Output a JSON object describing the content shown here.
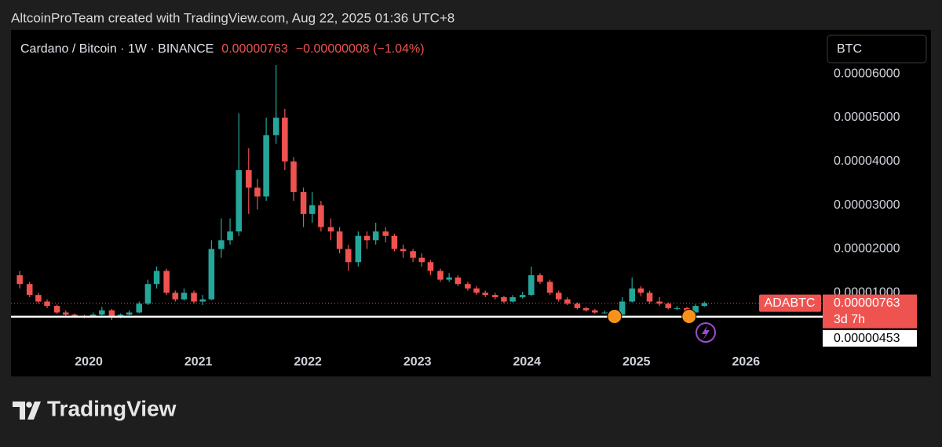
{
  "header": {
    "credit": "AltcoinProTeam created with TradingView.com, Aug 22, 2025 01:36 UTC+8"
  },
  "footer": {
    "brand": "TradingView"
  },
  "chart_data": {
    "type": "candlestick",
    "title": "Cardano / Bitcoin · 1W · BINANCE",
    "last_price": "0.00000763",
    "change": "−0.00000008 (−1.04%)",
    "currency": "BTC",
    "up_color": "#26a69a",
    "down_color": "#ef5350",
    "x": [
      2019.37,
      2019.46,
      2019.54,
      2019.62,
      2019.71,
      2019.79,
      2019.87,
      2019.96,
      2020.04,
      2020.12,
      2020.21,
      2020.29,
      2020.37,
      2020.46,
      2020.54,
      2020.62,
      2020.71,
      2020.79,
      2020.87,
      2020.96,
      2021.04,
      2021.12,
      2021.21,
      2021.29,
      2021.37,
      2021.46,
      2021.54,
      2021.62,
      2021.71,
      2021.79,
      2021.87,
      2021.96,
      2022.04,
      2022.12,
      2022.21,
      2022.29,
      2022.37,
      2022.46,
      2022.54,
      2022.62,
      2022.71,
      2022.79,
      2022.87,
      2022.96,
      2023.04,
      2023.12,
      2023.21,
      2023.29,
      2023.37,
      2023.46,
      2023.54,
      2023.62,
      2023.71,
      2023.79,
      2023.87,
      2023.96,
      2024.04,
      2024.12,
      2024.21,
      2024.29,
      2024.37,
      2024.46,
      2024.54,
      2024.62,
      2024.71,
      2024.79,
      2024.87,
      2024.96,
      2025.04,
      2025.12,
      2025.21,
      2025.29,
      2025.37,
      2025.46,
      2025.54,
      2025.62
    ],
    "open": [
      1.4e-05,
      1.2e-05,
      9.5e-06,
      8e-06,
      7e-06,
      5.5e-06,
      5e-06,
      4.6e-06,
      4.5e-06,
      5e-06,
      6e-06,
      4.5e-06,
      5e-06,
      5.5e-06,
      7.5e-06,
      1.2e-05,
      1.5e-05,
      1e-05,
      8.5e-06,
      1e-05,
      8e-06,
      8.5e-06,
      2e-05,
      2.2e-05,
      2.4e-05,
      3.8e-05,
      3.4e-05,
      3.2e-05,
      4.6e-05,
      5e-05,
      4e-05,
      3.3e-05,
      2.8e-05,
      3e-05,
      2.5e-05,
      2.4e-05,
      2e-05,
      1.7e-05,
      2.3e-05,
      2.2e-05,
      2.4e-05,
      2.3e-05,
      2e-05,
      1.95e-05,
      1.8e-05,
      1.7e-05,
      1.5e-05,
      1.3e-05,
      1.35e-05,
      1.2e-05,
      1.1e-05,
      1e-05,
      9.5e-06,
      9e-06,
      8e-06,
      9e-06,
      9.5e-06,
      1.4e-05,
      1.25e-05,
      1e-05,
      8.5e-06,
      7.5e-06,
      6.5e-06,
      6e-06,
      5.5e-06,
      5.5e-06,
      5e-06,
      8e-06,
      1.1e-05,
      1e-05,
      8e-06,
      7.5e-06,
      6.5e-06,
      6.5e-06,
      5.5e-06,
      7e-06
    ],
    "high": [
      1.5e-05,
      1.25e-05,
      1e-05,
      8.5e-06,
      7.3e-06,
      6e-06,
      5.3e-06,
      5e-06,
      5.5e-06,
      6.8e-06,
      6.3e-06,
      5.3e-06,
      6e-06,
      8e-06,
      1.3e-05,
      1.6e-05,
      1.55e-05,
      1.05e-05,
      1.1e-05,
      1.05e-05,
      9.5e-06,
      2.2e-05,
      2.7e-05,
      2.7e-05,
      5.1e-05,
      4.3e-05,
      3.6e-05,
      5e-05,
      6.2e-05,
      5.2e-05,
      4.1e-05,
      3.4e-05,
      3.3e-05,
      3.1e-05,
      2.7e-05,
      2.5e-05,
      2.1e-05,
      2.4e-05,
      2.4e-05,
      2.6e-05,
      2.5e-05,
      2.35e-05,
      2.1e-05,
      2e-05,
      1.9e-05,
      1.75e-05,
      1.55e-05,
      1.45e-05,
      1.4e-05,
      1.25e-05,
      1.15e-05,
      1.05e-05,
      1e-05,
      9.3e-06,
      9.5e-06,
      1.02e-05,
      1.6e-05,
      1.45e-05,
      1.3e-05,
      1.05e-05,
      9e-06,
      7.8e-06,
      6.8e-06,
      6.3e-06,
      5.9e-06,
      5.8e-06,
      9e-06,
      1.35e-05,
      1.15e-05,
      1.05e-05,
      9e-06,
      7.8e-06,
      7e-06,
      6.8e-06,
      7.4e-06,
      8e-06
    ],
    "low": [
      1.1e-05,
      9e-06,
      7.5e-06,
      6.5e-06,
      5.2e-06,
      4.7e-06,
      4.3e-06,
      4.2e-06,
      4.3e-06,
      4.8e-06,
      3.8e-06,
      4.2e-06,
      4.8e-06,
      5.3e-06,
      7.2e-06,
      1.1e-05,
      9.5e-06,
      8e-06,
      8.2e-06,
      7.5e-06,
      7.2e-06,
      8.3e-06,
      1.8e-05,
      2.1e-05,
      2.3e-05,
      2.8e-05,
      2.9e-05,
      3.1e-05,
      4.4e-05,
      3.8e-05,
      3.1e-05,
      2.5e-05,
      2.6e-05,
      2.4e-05,
      2.2e-05,
      1.9e-05,
      1.5e-05,
      1.6e-05,
      2e-05,
      2.1e-05,
      2.15e-05,
      1.95e-05,
      1.8e-05,
      1.7e-05,
      1.6e-05,
      1.4e-05,
      1.25e-05,
      1.25e-05,
      1.15e-05,
      1.05e-05,
      9.5e-06,
      9e-06,
      8.5e-06,
      7.6e-06,
      7.8e-06,
      8.7e-06,
      9.3e-06,
      1.2e-05,
      9.5e-06,
      8e-06,
      7.2e-06,
      6.2e-06,
      5.7e-06,
      5.2e-06,
      5.2e-06,
      4.7e-06,
      4.8e-06,
      7.8e-06,
      9.2e-06,
      7.5e-06,
      7e-06,
      6.2e-06,
      6e-06,
      4.9e-06,
      5.2e-06,
      6.8e-06
    ],
    "close": [
      1.2e-05,
      9.5e-06,
      8e-06,
      7e-06,
      5.5e-06,
      5e-06,
      4.6e-06,
      4.5e-06,
      5e-06,
      6e-06,
      4.5e-06,
      5e-06,
      5.5e-06,
      7.5e-06,
      1.2e-05,
      1.5e-05,
      1e-05,
      8.5e-06,
      1e-05,
      8e-06,
      8.5e-06,
      2e-05,
      2.2e-05,
      2.4e-05,
      3.8e-05,
      3.4e-05,
      3.2e-05,
      4.6e-05,
      5e-05,
      4e-05,
      3.3e-05,
      2.8e-05,
      3e-05,
      2.5e-05,
      2.4e-05,
      2e-05,
      1.7e-05,
      2.3e-05,
      2.2e-05,
      2.4e-05,
      2.3e-05,
      2e-05,
      1.95e-05,
      1.8e-05,
      1.7e-05,
      1.5e-05,
      1.3e-05,
      1.35e-05,
      1.2e-05,
      1.1e-05,
      1e-05,
      9.5e-06,
      9e-06,
      8e-06,
      9e-06,
      9.5e-06,
      1.4e-05,
      1.25e-05,
      1e-05,
      8.5e-06,
      7.5e-06,
      6.5e-06,
      6e-06,
      5.5e-06,
      5.5e-06,
      5e-06,
      8e-06,
      1.1e-05,
      1e-05,
      8e-06,
      7.5e-06,
      6.5e-06,
      6.5e-06,
      5.5e-06,
      7e-06,
      7.63e-06
    ],
    "xlim": [
      2019.29,
      2026.7
    ],
    "xticks": [
      2020,
      2021,
      2022,
      2023,
      2024,
      2025,
      2026
    ],
    "ylim": [
      -9.1e-06,
      6.97e-05
    ],
    "yticks": [
      {
        "value": 1e-05,
        "label": "0.00001000"
      },
      {
        "value": 2e-05,
        "label": "0.00002000"
      },
      {
        "value": 3e-05,
        "label": "0.00003000"
      },
      {
        "value": 4e-05,
        "label": "0.00004000"
      },
      {
        "value": 5e-05,
        "label": "0.00005000"
      },
      {
        "value": 6e-05,
        "label": "0.00006000"
      }
    ],
    "current_price": {
      "symbol": "ADABTC",
      "value": 7.63e-06,
      "label": "0.00000763",
      "countdown": "3d 7h"
    },
    "support_level": {
      "value": 4.53e-06,
      "label": "0.00000453"
    },
    "markers": {
      "x": [
        2024.8,
        2025.48
      ],
      "values": [
        4.6e-06,
        4.6e-06
      ],
      "color": "#f7931a"
    }
  }
}
